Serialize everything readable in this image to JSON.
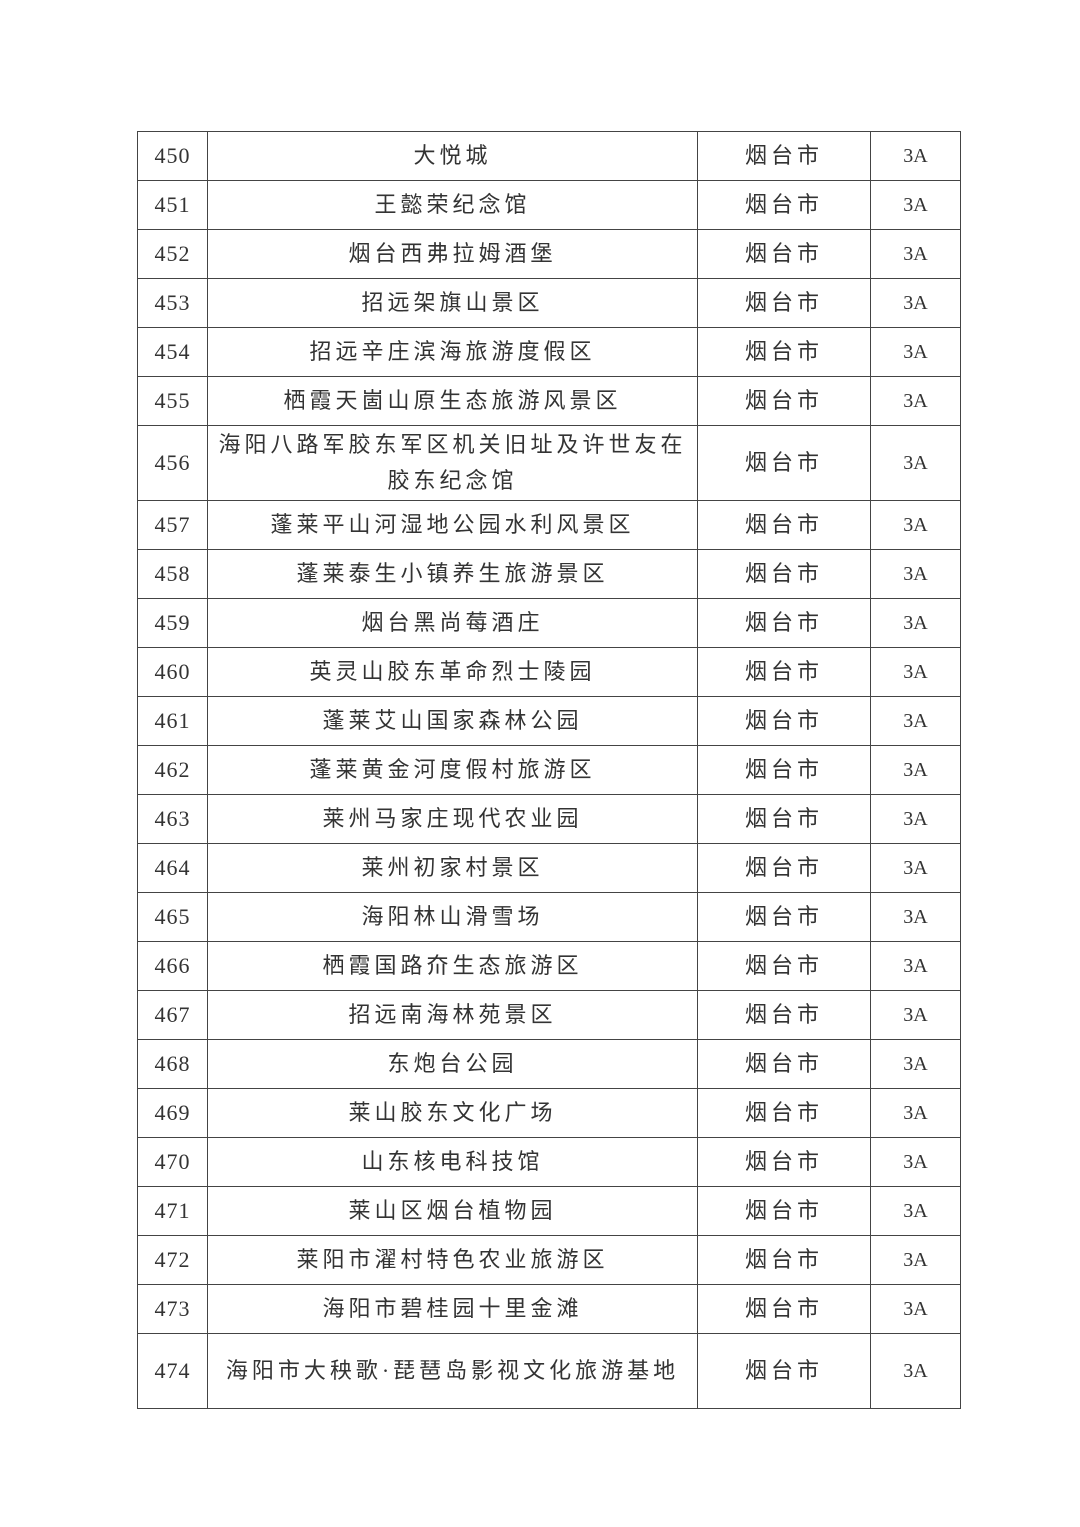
{
  "rows": [
    {
      "no": "450",
      "name": "大悦城",
      "city": "烟台市",
      "level": "3A"
    },
    {
      "no": "451",
      "name": "王懿荣纪念馆",
      "city": "烟台市",
      "level": "3A"
    },
    {
      "no": "452",
      "name": "烟台西弗拉姆酒堡",
      "city": "烟台市",
      "level": "3A"
    },
    {
      "no": "453",
      "name": "招远架旗山景区",
      "city": "烟台市",
      "level": "3A"
    },
    {
      "no": "454",
      "name": "招远辛庄滨海旅游度假区",
      "city": "烟台市",
      "level": "3A"
    },
    {
      "no": "455",
      "name": "栖霞天崮山原生态旅游风景区",
      "city": "烟台市",
      "level": "3A"
    },
    {
      "no": "456",
      "name": "海阳八路军胶东军区机关旧址及许世友在胶东纪念馆",
      "city": "烟台市",
      "level": "3A"
    },
    {
      "no": "457",
      "name": "蓬莱平山河湿地公园水利风景区",
      "city": "烟台市",
      "level": "3A"
    },
    {
      "no": "458",
      "name": "蓬莱泰生小镇养生旅游景区",
      "city": "烟台市",
      "level": "3A"
    },
    {
      "no": "459",
      "name": "烟台黑尚莓酒庄",
      "city": "烟台市",
      "level": "3A"
    },
    {
      "no": "460",
      "name": "英灵山胶东革命烈士陵园",
      "city": "烟台市",
      "level": "3A"
    },
    {
      "no": "461",
      "name": "蓬莱艾山国家森林公园",
      "city": "烟台市",
      "level": "3A"
    },
    {
      "no": "462",
      "name": "蓬莱黄金河度假村旅游区",
      "city": "烟台市",
      "level": "3A"
    },
    {
      "no": "463",
      "name": "莱州马家庄现代农业园",
      "city": "烟台市",
      "level": "3A"
    },
    {
      "no": "464",
      "name": "莱州初家村景区",
      "city": "烟台市",
      "level": "3A"
    },
    {
      "no": "465",
      "name": "海阳林山滑雪场",
      "city": "烟台市",
      "level": "3A"
    },
    {
      "no": "466",
      "name": "栖霞国路夼生态旅游区",
      "city": "烟台市",
      "level": "3A"
    },
    {
      "no": "467",
      "name": "招远南海林苑景区",
      "city": "烟台市",
      "level": "3A"
    },
    {
      "no": "468",
      "name": "东炮台公园",
      "city": "烟台市",
      "level": "3A"
    },
    {
      "no": "469",
      "name": "莱山胶东文化广场",
      "city": "烟台市",
      "level": "3A"
    },
    {
      "no": "470",
      "name": "山东核电科技馆",
      "city": "烟台市",
      "level": "3A"
    },
    {
      "no": "471",
      "name": "莱山区烟台植物园",
      "city": "烟台市",
      "level": "3A"
    },
    {
      "no": "472",
      "name": "莱阳市濯村特色农业旅游区",
      "city": "烟台市",
      "level": "3A"
    },
    {
      "no": "473",
      "name": "海阳市碧桂园十里金滩",
      "city": "烟台市",
      "level": "3A"
    },
    {
      "no": "474",
      "name": "海阳市大秧歌·琵琶岛影视文化旅游基地",
      "city": "烟台市",
      "level": "3A"
    }
  ]
}
